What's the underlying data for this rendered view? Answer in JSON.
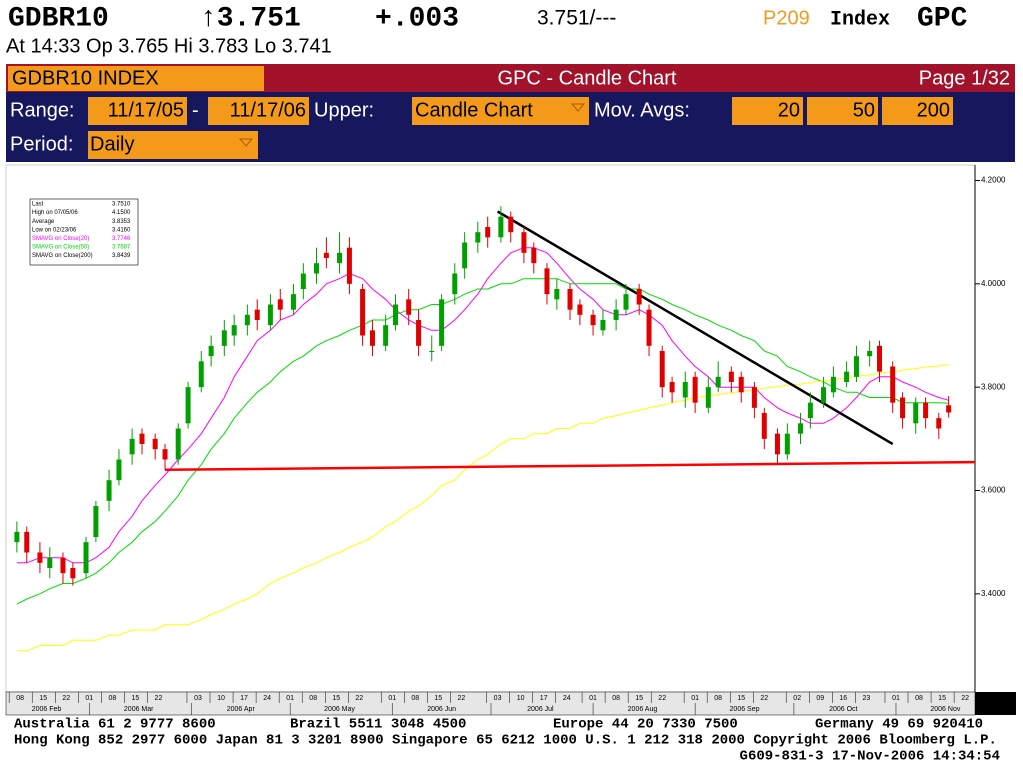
{
  "header": {
    "ticker": "GDBR10",
    "last": "↑3.751",
    "change": "+.003",
    "quote": "3.751/---",
    "page_code": "P209",
    "market": "Index",
    "function": "GPC",
    "session": "At 14:33  Op 3.765 Hi 3.783 Lo 3.741"
  },
  "titlebar": {
    "security": "GDBR10 INDEX",
    "title": "GPC - Candle Chart",
    "page": "Page 1/32"
  },
  "toolbar": {
    "range_label": "Range:",
    "range_start": "11/17/05",
    "range_sep": "-",
    "range_end": "11/17/06",
    "upper_label": "Upper:",
    "upper": "Candle Chart",
    "mavg_label": "Mov. Avgs:",
    "mavgs": [
      "20",
      "50",
      "200"
    ],
    "period_label": "Period:",
    "period": "Daily"
  },
  "chart_data": {
    "type": "candlestick",
    "up_color": "#00a000",
    "down_color": "#e00000",
    "x": [
      "2006-02-07",
      "2006-02-10",
      "2006-02-14",
      "2006-02-17",
      "2006-02-21",
      "2006-02-24",
      "2006-02-28",
      "2006-03-03",
      "2006-03-07",
      "2006-03-10",
      "2006-03-14",
      "2006-03-17",
      "2006-03-21",
      "2006-03-24",
      "2006-03-28",
      "2006-03-31",
      "2006-04-04",
      "2006-04-07",
      "2006-04-11",
      "2006-04-14",
      "2006-04-18",
      "2006-04-21",
      "2006-04-25",
      "2006-04-28",
      "2006-05-02",
      "2006-05-05",
      "2006-05-09",
      "2006-05-12",
      "2006-05-16",
      "2006-05-19",
      "2006-05-23",
      "2006-05-26",
      "2006-05-30",
      "2006-06-02",
      "2006-06-06",
      "2006-06-09",
      "2006-06-13",
      "2006-06-16",
      "2006-06-20",
      "2006-06-23",
      "2006-06-27",
      "2006-06-30",
      "2006-07-04",
      "2006-07-07",
      "2006-07-11",
      "2006-07-14",
      "2006-07-18",
      "2006-07-21",
      "2006-07-25",
      "2006-07-28",
      "2006-08-01",
      "2006-08-04",
      "2006-08-08",
      "2006-08-11",
      "2006-08-15",
      "2006-08-18",
      "2006-08-22",
      "2006-08-25",
      "2006-08-29",
      "2006-09-01",
      "2006-09-05",
      "2006-09-08",
      "2006-09-12",
      "2006-09-15",
      "2006-09-19",
      "2006-09-22",
      "2006-09-26",
      "2006-09-29",
      "2006-10-03",
      "2006-10-06",
      "2006-10-10",
      "2006-10-13",
      "2006-10-17",
      "2006-10-20",
      "2006-10-24",
      "2006-10-27",
      "2006-10-31",
      "2006-11-03",
      "2006-11-07",
      "2006-11-10",
      "2006-11-14",
      "2006-11-17"
    ],
    "open": [
      3.5,
      3.52,
      3.48,
      3.45,
      3.47,
      3.45,
      3.44,
      3.51,
      3.58,
      3.62,
      3.67,
      3.71,
      3.7,
      3.68,
      3.66,
      3.73,
      3.8,
      3.86,
      3.88,
      3.9,
      3.92,
      3.95,
      3.92,
      3.97,
      3.95,
      3.99,
      4.02,
      4.06,
      4.04,
      4.07,
      3.99,
      3.91,
      3.88,
      3.92,
      3.97,
      3.93,
      3.87,
      3.88,
      3.98,
      4.03,
      4.08,
      4.11,
      4.09,
      4.13,
      4.1,
      4.07,
      4.03,
      3.97,
      3.99,
      3.96,
      3.94,
      3.91,
      3.93,
      3.95,
      3.99,
      3.95,
      3.87,
      3.81,
      3.78,
      3.82,
      3.76,
      3.8,
      3.83,
      3.82,
      3.8,
      3.75,
      3.71,
      3.67,
      3.71,
      3.74,
      3.77,
      3.79,
      3.81,
      3.82,
      3.86,
      3.88,
      3.84,
      3.78,
      3.73,
      3.77,
      3.74,
      3.765
    ],
    "high": [
      3.54,
      3.53,
      3.5,
      3.49,
      3.48,
      3.46,
      3.51,
      3.58,
      3.64,
      3.68,
      3.72,
      3.72,
      3.71,
      3.69,
      3.73,
      3.81,
      3.87,
      3.9,
      3.93,
      3.94,
      3.96,
      3.97,
      3.98,
      3.99,
      4.0,
      4.04,
      4.07,
      4.09,
      4.1,
      4.09,
      4.0,
      3.93,
      3.94,
      3.98,
      3.99,
      3.95,
      3.9,
      3.98,
      4.04,
      4.1,
      4.12,
      4.13,
      4.15,
      4.14,
      4.11,
      4.08,
      4.04,
      4.01,
      4.0,
      3.97,
      3.95,
      3.95,
      3.97,
      4.0,
      4.0,
      3.96,
      3.88,
      3.82,
      3.83,
      3.83,
      3.82,
      3.85,
      3.84,
      3.83,
      3.81,
      3.76,
      3.72,
      3.73,
      3.75,
      3.79,
      3.82,
      3.84,
      3.85,
      3.88,
      3.89,
      3.89,
      3.85,
      3.79,
      3.78,
      3.78,
      3.75,
      3.783
    ],
    "low": [
      3.48,
      3.46,
      3.44,
      3.43,
      3.42,
      3.416,
      3.43,
      3.5,
      3.56,
      3.61,
      3.65,
      3.67,
      3.66,
      3.64,
      3.65,
      3.72,
      3.79,
      3.84,
      3.86,
      3.88,
      3.9,
      3.91,
      3.91,
      3.93,
      3.94,
      3.97,
      4.0,
      4.03,
      4.02,
      3.98,
      3.88,
      3.86,
      3.87,
      3.91,
      3.92,
      3.86,
      3.85,
      3.87,
      3.96,
      4.01,
      4.06,
      4.07,
      4.08,
      4.08,
      4.04,
      4.02,
      3.96,
      3.95,
      3.93,
      3.92,
      3.9,
      3.9,
      3.91,
      3.94,
      3.94,
      3.86,
      3.78,
      3.77,
      3.76,
      3.75,
      3.75,
      3.79,
      3.79,
      3.77,
      3.74,
      3.68,
      3.65,
      3.66,
      3.69,
      3.72,
      3.76,
      3.78,
      3.8,
      3.81,
      3.84,
      3.81,
      3.75,
      3.72,
      3.71,
      3.72,
      3.7,
      3.741
    ],
    "close": [
      3.52,
      3.48,
      3.46,
      3.47,
      3.44,
      3.43,
      3.5,
      3.57,
      3.62,
      3.66,
      3.7,
      3.69,
      3.68,
      3.66,
      3.72,
      3.8,
      3.85,
      3.88,
      3.91,
      3.92,
      3.94,
      3.93,
      3.96,
      3.95,
      3.98,
      4.02,
      4.04,
      4.05,
      4.06,
      4.0,
      3.9,
      3.88,
      3.92,
      3.96,
      3.94,
      3.88,
      3.87,
      3.97,
      4.02,
      4.08,
      4.1,
      4.09,
      4.13,
      4.1,
      4.06,
      4.04,
      3.98,
      3.99,
      3.95,
      3.94,
      3.92,
      3.93,
      3.95,
      3.98,
      3.96,
      3.88,
      3.8,
      3.79,
      3.81,
      3.77,
      3.8,
      3.82,
      3.81,
      3.79,
      3.76,
      3.7,
      3.67,
      3.71,
      3.73,
      3.77,
      3.8,
      3.82,
      3.83,
      3.86,
      3.87,
      3.83,
      3.77,
      3.74,
      3.77,
      3.74,
      3.72,
      3.751
    ],
    "series": [
      {
        "name": "SMAVG on Close(20)",
        "color": "#ff00ff",
        "last_label": "3.7746",
        "values": [
          3.46,
          3.46,
          3.47,
          3.47,
          3.47,
          3.46,
          3.46,
          3.47,
          3.49,
          3.52,
          3.55,
          3.58,
          3.61,
          3.63,
          3.66,
          3.68,
          3.71,
          3.74,
          3.78,
          3.82,
          3.86,
          3.89,
          3.91,
          3.93,
          3.94,
          3.96,
          3.98,
          4.0,
          4.01,
          4.02,
          4.01,
          3.99,
          3.97,
          3.95,
          3.93,
          3.92,
          3.91,
          3.91,
          3.93,
          3.95,
          3.98,
          4.01,
          4.04,
          4.06,
          4.07,
          4.07,
          4.06,
          4.04,
          4.01,
          3.99,
          3.97,
          3.95,
          3.94,
          3.94,
          3.95,
          3.94,
          3.92,
          3.89,
          3.86,
          3.84,
          3.82,
          3.8,
          3.8,
          3.8,
          3.8,
          3.78,
          3.76,
          3.75,
          3.74,
          3.73,
          3.73,
          3.74,
          3.76,
          3.78,
          3.81,
          3.82,
          3.82,
          3.81,
          3.8,
          3.79,
          3.78,
          3.7746
        ]
      },
      {
        "name": "SMAVG on Close(50)",
        "color": "#00dd00",
        "last_label": "3.7687",
        "values": [
          3.38,
          3.39,
          3.4,
          3.41,
          3.42,
          3.42,
          3.43,
          3.44,
          3.46,
          3.48,
          3.5,
          3.52,
          3.54,
          3.56,
          3.59,
          3.62,
          3.65,
          3.68,
          3.71,
          3.74,
          3.77,
          3.79,
          3.81,
          3.83,
          3.85,
          3.86,
          3.88,
          3.89,
          3.9,
          3.91,
          3.92,
          3.93,
          3.93,
          3.94,
          3.95,
          3.95,
          3.96,
          3.96,
          3.97,
          3.98,
          3.99,
          3.99,
          4.0,
          4.0,
          4.01,
          4.01,
          4.01,
          4.01,
          4.0,
          4.0,
          4.0,
          4.0,
          4.0,
          3.99,
          3.99,
          3.98,
          3.97,
          3.96,
          3.95,
          3.94,
          3.93,
          3.92,
          3.91,
          3.9,
          3.89,
          3.87,
          3.86,
          3.84,
          3.83,
          3.82,
          3.81,
          3.8,
          3.79,
          3.79,
          3.78,
          3.78,
          3.78,
          3.77,
          3.77,
          3.77,
          3.77,
          3.7687
        ]
      },
      {
        "name": "SMAVG on Close(200)",
        "color": "#ffff00",
        "last_label": "3.8439",
        "values": [
          3.29,
          3.29,
          3.3,
          3.3,
          3.3,
          3.31,
          3.31,
          3.31,
          3.32,
          3.32,
          3.33,
          3.33,
          3.33,
          3.34,
          3.34,
          3.34,
          3.35,
          3.36,
          3.37,
          3.38,
          3.39,
          3.4,
          3.42,
          3.43,
          3.44,
          3.45,
          3.46,
          3.47,
          3.48,
          3.49,
          3.5,
          3.51,
          3.53,
          3.54,
          3.56,
          3.57,
          3.59,
          3.61,
          3.62,
          3.64,
          3.66,
          3.67,
          3.69,
          3.7,
          3.7,
          3.71,
          3.71,
          3.72,
          3.72,
          3.73,
          3.73,
          3.74,
          3.745,
          3.75,
          3.755,
          3.76,
          3.765,
          3.77,
          3.775,
          3.78,
          3.783,
          3.786,
          3.789,
          3.792,
          3.795,
          3.798,
          3.801,
          3.804,
          3.806,
          3.809,
          3.812,
          3.815,
          3.818,
          3.821,
          3.824,
          3.827,
          3.83,
          3.833,
          3.836,
          3.839,
          3.841,
          3.8439
        ]
      }
    ],
    "stats": [
      {
        "label": "Last",
        "value": "3.7510"
      },
      {
        "label": "High on  07/05/06",
        "value": "4.1500"
      },
      {
        "label": "Average",
        "value": "3.8353"
      },
      {
        "label": "Low on  02/23/06",
        "value": "3.4160"
      }
    ],
    "trendlines": [
      {
        "color": "#000000",
        "x": [
          "2006-07-03",
          "2006-10-31"
        ],
        "y": [
          4.14,
          3.69
        ]
      },
      {
        "color": "#ff0000",
        "x": [
          "2006-03-24",
          "2006-11-25"
        ],
        "y": [
          3.64,
          3.655
        ]
      }
    ],
    "xlim": [
      "2006-02-04",
      "2006-11-25"
    ],
    "xticks": [
      {
        "value": "2006-02-08",
        "label": "08"
      },
      {
        "value": "2006-02-15",
        "label": "15"
      },
      {
        "value": "2006-02-22",
        "label": "22"
      },
      {
        "value": "2006-03-01",
        "label": "01"
      },
      {
        "value": "2006-03-08",
        "label": "08"
      },
      {
        "value": "2006-03-15",
        "label": "15"
      },
      {
        "value": "2006-03-22",
        "label": "22"
      },
      {
        "value": "2006-04-03",
        "label": "03"
      },
      {
        "value": "2006-04-10",
        "label": "10"
      },
      {
        "value": "2006-04-17",
        "label": "17"
      },
      {
        "value": "2006-04-24",
        "label": "24"
      },
      {
        "value": "2006-05-01",
        "label": "01"
      },
      {
        "value": "2006-05-08",
        "label": "08"
      },
      {
        "value": "2006-05-15",
        "label": "15"
      },
      {
        "value": "2006-05-22",
        "label": "22"
      },
      {
        "value": "2006-06-01",
        "label": "01"
      },
      {
        "value": "2006-06-08",
        "label": "08"
      },
      {
        "value": "2006-06-15",
        "label": "15"
      },
      {
        "value": "2006-06-22",
        "label": "22"
      },
      {
        "value": "2006-07-03",
        "label": "03"
      },
      {
        "value": "2006-07-10",
        "label": "10"
      },
      {
        "value": "2006-07-17",
        "label": "17"
      },
      {
        "value": "2006-07-24",
        "label": "24"
      },
      {
        "value": "2006-08-01",
        "label": "01"
      },
      {
        "value": "2006-08-08",
        "label": "08"
      },
      {
        "value": "2006-08-15",
        "label": "15"
      },
      {
        "value": "2006-08-22",
        "label": "22"
      },
      {
        "value": "2006-09-01",
        "label": "01"
      },
      {
        "value": "2006-09-08",
        "label": "08"
      },
      {
        "value": "2006-09-15",
        "label": "15"
      },
      {
        "value": "2006-09-22",
        "label": "22"
      },
      {
        "value": "2006-10-02",
        "label": "02"
      },
      {
        "value": "2006-10-09",
        "label": "09"
      },
      {
        "value": "2006-10-16",
        "label": "16"
      },
      {
        "value": "2006-10-23",
        "label": "23"
      },
      {
        "value": "2006-11-01",
        "label": "01"
      },
      {
        "value": "2006-11-08",
        "label": "08"
      },
      {
        "value": "2006-11-15",
        "label": "15"
      },
      {
        "value": "2006-11-22",
        "label": "22"
      }
    ],
    "xmonths": [
      {
        "value": "2006-02",
        "label": "2006 Feb"
      },
      {
        "value": "2006-03",
        "label": "2006 Mar"
      },
      {
        "value": "2006-04",
        "label": "2006 Apr"
      },
      {
        "value": "2006-05",
        "label": "2006 May"
      },
      {
        "value": "2006-06",
        "label": "2006 Jun"
      },
      {
        "value": "2006-07",
        "label": "2006 Jul"
      },
      {
        "value": "2006-08",
        "label": "2006 Aug"
      },
      {
        "value": "2006-09",
        "label": "2006 Sep"
      },
      {
        "value": "2006-10",
        "label": "2006 Oct"
      },
      {
        "value": "2006-11",
        "label": "2006 Nov"
      }
    ],
    "ylim": [
      3.21,
      4.23
    ],
    "yticks": [
      {
        "value": 3.4,
        "label": "3.4000"
      },
      {
        "value": 3.6,
        "label": "3.6000"
      },
      {
        "value": 3.8,
        "label": "3.8000"
      },
      {
        "value": 4.0,
        "label": "4.0000"
      },
      {
        "value": 4.2,
        "label": "4.2000"
      }
    ]
  },
  "footer": {
    "line1": [
      "Australia 61 2 9777 8600",
      "Brazil 5511 3048 4500",
      "Europe 44 20 7330 7500",
      "Germany 49 69 920410"
    ],
    "line2": "Hong Kong 852 2977 6000 Japan 81 3 3201 8900 Singapore 65 6212 1000 U.S. 1 212 318 2000 Copyright 2006 Bloomberg L.P.",
    "line3": "G609-831-3 17-Nov-2006 14:34:54"
  }
}
